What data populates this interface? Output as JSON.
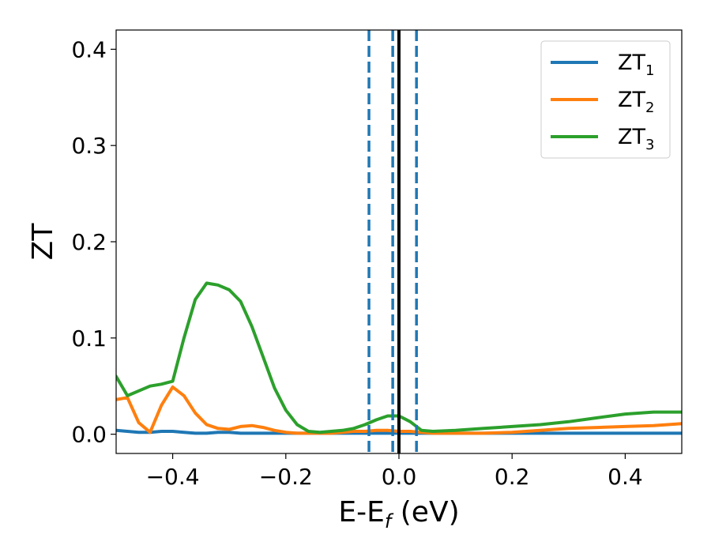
{
  "chart_data": {
    "type": "line",
    "title": "",
    "xlabel": "E-E",
    "xlabel_sub": "f",
    "xlabel_unit": " (eV)",
    "ylabel": "ZT",
    "xlim": [
      -0.5,
      0.5
    ],
    "ylim": [
      -0.02,
      0.42
    ],
    "xticks": [
      -0.4,
      -0.2,
      0.0,
      0.2,
      0.4
    ],
    "xtick_labels": [
      "−0.4",
      "−0.2",
      "0.0",
      "0.2",
      "0.4"
    ],
    "yticks": [
      0.0,
      0.1,
      0.2,
      0.3,
      0.4
    ],
    "ytick_labels": [
      "0.0",
      "0.1",
      "0.2",
      "0.3",
      "0.4"
    ],
    "grid": false,
    "legend_position": "top-right",
    "x": [
      -0.5,
      -0.48,
      -0.46,
      -0.44,
      -0.42,
      -0.4,
      -0.38,
      -0.36,
      -0.34,
      -0.32,
      -0.3,
      -0.28,
      -0.26,
      -0.24,
      -0.22,
      -0.2,
      -0.18,
      -0.16,
      -0.14,
      -0.12,
      -0.1,
      -0.08,
      -0.06,
      -0.04,
      -0.02,
      0.0,
      0.02,
      0.04,
      0.06,
      0.1,
      0.15,
      0.2,
      0.25,
      0.3,
      0.35,
      0.4,
      0.45,
      0.5
    ],
    "series": [
      {
        "name": "ZT",
        "sub": "1",
        "color": "#1f77b4",
        "values": [
          0.004,
          0.003,
          0.002,
          0.002,
          0.003,
          0.003,
          0.002,
          0.001,
          0.001,
          0.002,
          0.002,
          0.001,
          0.001,
          0.001,
          0.001,
          0.001,
          0.001,
          0.001,
          0.001,
          0.001,
          0.001,
          0.001,
          0.001,
          0.001,
          0.001,
          0.001,
          0.001,
          0.001,
          0.001,
          0.001,
          0.001,
          0.001,
          0.001,
          0.001,
          0.001,
          0.001,
          0.001,
          0.001
        ]
      },
      {
        "name": "ZT",
        "sub": "2",
        "color": "#ff7f0e",
        "values": [
          0.036,
          0.038,
          0.012,
          0.002,
          0.03,
          0.049,
          0.04,
          0.022,
          0.01,
          0.006,
          0.005,
          0.008,
          0.009,
          0.007,
          0.004,
          0.002,
          0.001,
          0.001,
          0.001,
          0.001,
          0.002,
          0.003,
          0.003,
          0.004,
          0.004,
          0.003,
          0.003,
          0.002,
          0.001,
          0.001,
          0.001,
          0.002,
          0.004,
          0.006,
          0.007,
          0.008,
          0.009,
          0.011
        ]
      },
      {
        "name": "ZT",
        "sub": "3",
        "color": "#2ca02c",
        "values": [
          0.06,
          0.04,
          0.045,
          0.05,
          0.052,
          0.055,
          0.1,
          0.14,
          0.157,
          0.155,
          0.15,
          0.138,
          0.112,
          0.08,
          0.048,
          0.025,
          0.01,
          0.003,
          0.002,
          0.003,
          0.004,
          0.006,
          0.01,
          0.015,
          0.019,
          0.019,
          0.013,
          0.004,
          0.003,
          0.004,
          0.006,
          0.008,
          0.01,
          0.013,
          0.017,
          0.021,
          0.023,
          0.023
        ]
      }
    ],
    "vlines": [
      {
        "x": 0.0,
        "color": "#000000",
        "style": "solid"
      },
      {
        "x": -0.053,
        "color": "#1f77b4",
        "style": "dashed"
      },
      {
        "x": -0.011,
        "color": "#1f77b4",
        "style": "dashed"
      },
      {
        "x": 0.031,
        "color": "#1f77b4",
        "style": "dashed"
      }
    ]
  }
}
